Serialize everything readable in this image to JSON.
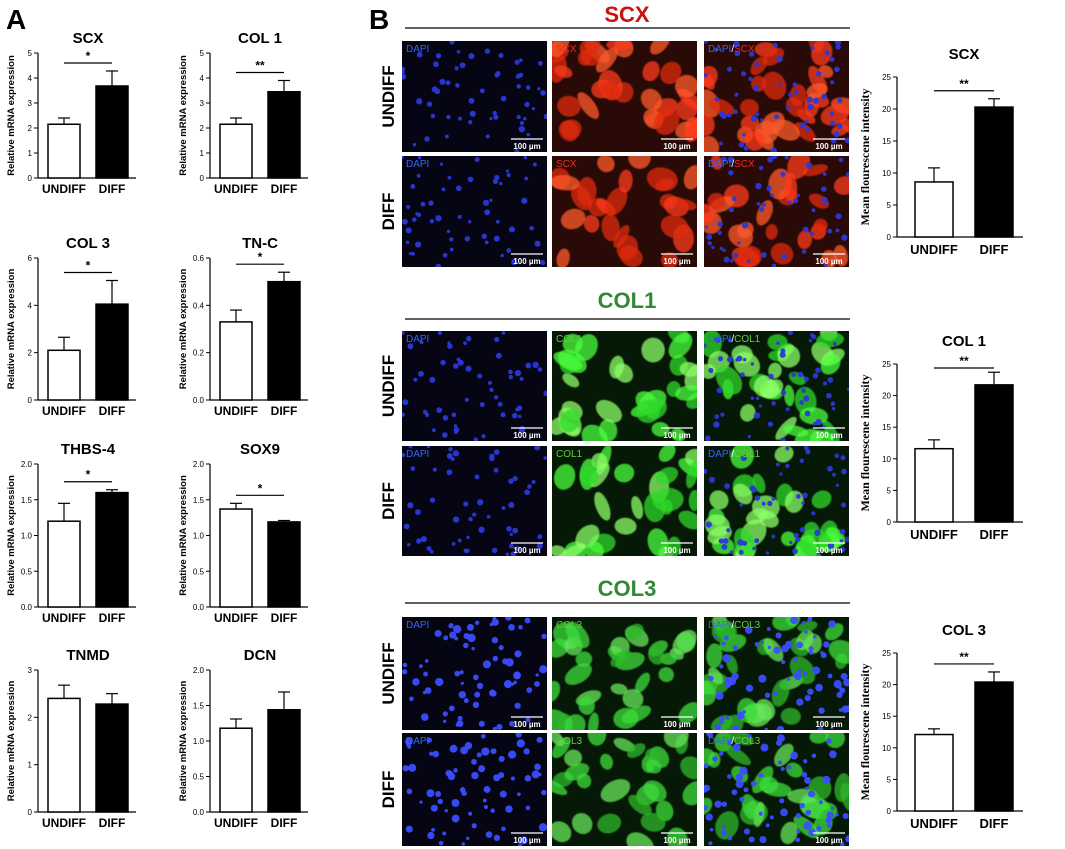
{
  "panel_labels": {
    "a": "A",
    "b": "B"
  },
  "colors": {
    "red": "#cc1111",
    "green": "#338833",
    "blue_label": "#3366ff"
  },
  "chart_data": [
    {
      "id": "scx",
      "type": "bar",
      "title": "SCX",
      "ylabel": "Relative mRNA expression",
      "categories": [
        "UNDIFF",
        "DIFF"
      ],
      "values": [
        2.15,
        3.68
      ],
      "errors": [
        0.25,
        0.6
      ],
      "ylim": [
        0,
        5
      ],
      "yticks": [
        "0",
        "1",
        "2",
        "3",
        "4",
        "5"
      ],
      "sig": "*"
    },
    {
      "id": "col1",
      "type": "bar",
      "title": "COL 1",
      "ylabel": "Relative mRNA expression",
      "categories": [
        "UNDIFF",
        "DIFF"
      ],
      "values": [
        2.15,
        3.45
      ],
      "errors": [
        0.25,
        0.45
      ],
      "ylim": [
        0,
        5
      ],
      "yticks": [
        "0",
        "1",
        "2",
        "3",
        "4",
        "5"
      ],
      "sig": "**"
    },
    {
      "id": "col3",
      "type": "bar",
      "title": "COL 3",
      "ylabel": "Relative mRNA expression",
      "categories": [
        "UNDIFF",
        "DIFF"
      ],
      "values": [
        2.1,
        4.05
      ],
      "errors": [
        0.55,
        1.0
      ],
      "ylim": [
        0,
        6
      ],
      "yticks": [
        "0",
        "2",
        "4",
        "6"
      ],
      "sig": "*"
    },
    {
      "id": "tnc",
      "type": "bar",
      "title": "TN-C",
      "ylabel": "Relative mRNA expression",
      "categories": [
        "UNDIFF",
        "DIFF"
      ],
      "values": [
        0.33,
        0.5
      ],
      "errors": [
        0.05,
        0.04
      ],
      "ylim": [
        0,
        0.6
      ],
      "yticks": [
        "0.0",
        "0.2",
        "0.4",
        "0.6"
      ],
      "sig": "*"
    },
    {
      "id": "thbs4",
      "type": "bar",
      "title": "THBS-4",
      "ylabel": "Relative mRNA expression",
      "categories": [
        "UNDIFF",
        "DIFF"
      ],
      "values": [
        1.2,
        1.6
      ],
      "errors": [
        0.25,
        0.04
      ],
      "ylim": [
        0,
        2.0
      ],
      "yticks": [
        "0.0",
        "0.5",
        "1.0",
        "1.5",
        "2.0"
      ],
      "sig": "*"
    },
    {
      "id": "sox9",
      "type": "bar",
      "title": "SOX9",
      "ylabel": "Relative mRNA expression",
      "categories": [
        "UNDIFF",
        "DIFF"
      ],
      "values": [
        1.37,
        1.19
      ],
      "errors": [
        0.08,
        0.02
      ],
      "ylim": [
        0,
        2.0
      ],
      "yticks": [
        "0.0",
        "0.5",
        "1.0",
        "1.5",
        "2.0"
      ],
      "sig": "*"
    },
    {
      "id": "tnmd",
      "type": "bar",
      "title": "TNMD",
      "ylabel": "Relative mRNA expression",
      "categories": [
        "UNDIFF",
        "DIFF"
      ],
      "values": [
        2.4,
        2.28
      ],
      "errors": [
        0.28,
        0.22
      ],
      "ylim": [
        0,
        3
      ],
      "yticks": [
        "0",
        "1",
        "2",
        "3"
      ],
      "sig": ""
    },
    {
      "id": "dcn",
      "type": "bar",
      "title": "DCN",
      "ylabel": "Relative mRNA expression",
      "categories": [
        "UNDIFF",
        "DIFF"
      ],
      "values": [
        1.18,
        1.44
      ],
      "errors": [
        0.13,
        0.25
      ],
      "ylim": [
        0,
        2.0
      ],
      "yticks": [
        "0.0",
        "0.5",
        "1.0",
        "1.5",
        "2.0"
      ],
      "sig": ""
    },
    {
      "id": "b_scx",
      "type": "bar",
      "title": "SCX",
      "ylabel": "Mean flourescene intensity",
      "categories": [
        "UNDIFF",
        "DIFF"
      ],
      "values": [
        8.6,
        20.3
      ],
      "errors": [
        2.2,
        1.3
      ],
      "ylim": [
        0,
        25
      ],
      "yticks": [
        "0",
        "5",
        "10",
        "15",
        "20",
        "25"
      ],
      "sig": "**"
    },
    {
      "id": "b_col1",
      "type": "bar",
      "title": "COL 1",
      "ylabel": "Mean flourescene intensity",
      "categories": [
        "UNDIFF",
        "DIFF"
      ],
      "values": [
        11.6,
        21.7
      ],
      "errors": [
        1.4,
        2.0
      ],
      "ylim": [
        0,
        25
      ],
      "yticks": [
        "0",
        "5",
        "10",
        "15",
        "20",
        "25"
      ],
      "sig": "**"
    },
    {
      "id": "b_col3",
      "type": "bar",
      "title": "COL 3",
      "ylabel": "Mean flourescene intensity",
      "categories": [
        "UNDIFF",
        "DIFF"
      ],
      "values": [
        12.1,
        20.4
      ],
      "errors": [
        0.9,
        1.6
      ],
      "ylim": [
        0,
        25
      ],
      "yticks": [
        "0",
        "5",
        "10",
        "15",
        "20",
        "25"
      ],
      "sig": "**"
    }
  ],
  "micrographs": {
    "sections": [
      {
        "id": "scx",
        "title": "SCX",
        "color": "#cc1111",
        "rows": [
          {
            "label": "UNDIFF",
            "panels": [
              "DAPI",
              "SCX",
              "DAPI/SCX"
            ],
            "scale": "100 µm"
          },
          {
            "label": "DIFF",
            "panels": [
              "DAPI",
              "SCX",
              "DAPI/SCX"
            ],
            "scale": "100 µm"
          }
        ]
      },
      {
        "id": "col1",
        "title": "COL1",
        "color": "#338833",
        "rows": [
          {
            "label": "UNDIFF",
            "panels": [
              "DAPI",
              "COL1",
              "DAPI/COL1"
            ],
            "scale": "100 µm"
          },
          {
            "label": "DIFF",
            "panels": [
              "DAPI",
              "COL1",
              "DAPI/COL1"
            ],
            "scale": "100 µm"
          }
        ]
      },
      {
        "id": "col3",
        "title": "COL3",
        "color": "#338833",
        "rows": [
          {
            "label": "UNDIFF",
            "panels": [
              "DAPI",
              "COL3",
              "DAPI/COL3"
            ],
            "scale": "100 µm"
          },
          {
            "label": "DIFF",
            "panels": [
              "DAPI",
              "COL3",
              "DAPI/COL3"
            ],
            "scale": "100 µm"
          }
        ]
      }
    ]
  }
}
